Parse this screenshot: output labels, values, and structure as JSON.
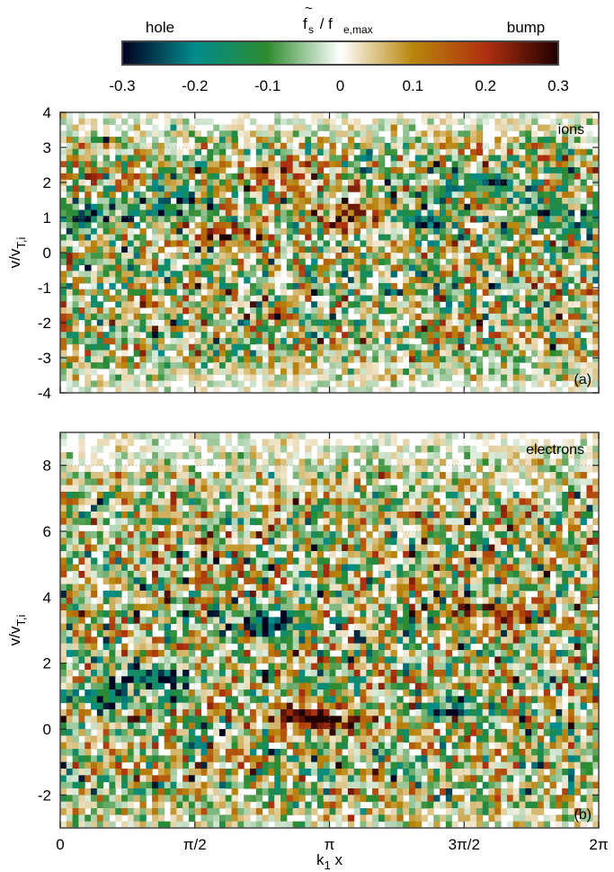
{
  "colorbar": {
    "title_main": "f",
    "title_tilde": "~",
    "title_sub": "s",
    "title_rest": " / f",
    "title_sub2": "e,max",
    "left_label": "hole",
    "right_label": "bump",
    "ticks": [
      "-0.3",
      "-0.2",
      "-0.1",
      "0",
      "0.1",
      "0.2",
      "0.3"
    ],
    "min": -0.3,
    "max": 0.3,
    "stops": [
      {
        "v": -0.3,
        "c": "#000020"
      },
      {
        "v": -0.2,
        "c": "#008c8c"
      },
      {
        "v": -0.1,
        "c": "#2e8b2e"
      },
      {
        "v": 0.0,
        "c": "#ffffff"
      },
      {
        "v": 0.1,
        "c": "#b8860b"
      },
      {
        "v": 0.2,
        "c": "#b03010"
      },
      {
        "v": 0.3,
        "c": "#200000"
      }
    ]
  },
  "chart_data": [
    {
      "type": "heatmap",
      "panel_label": "(a)",
      "species_label": "ions",
      "ylabel_main": "v/v",
      "ylabel_sub": "T,i",
      "xlim": [
        0,
        6.2832
      ],
      "ylim": [
        -4,
        4
      ],
      "yticks": [
        "4",
        "3",
        "2",
        "1",
        "0",
        "-1",
        "-2",
        "-3",
        "-4"
      ],
      "ytick_values": [
        4,
        3,
        2,
        1,
        0,
        -1,
        -2,
        -3,
        -4
      ],
      "xticks": [
        "0",
        "π/2",
        "π",
        "3π/2",
        "2π"
      ],
      "xtick_values": [
        0,
        1.5708,
        3.1416,
        4.7124,
        6.2832
      ],
      "grid": true,
      "features": [
        {
          "x": 1.3,
          "y": 1.3,
          "value": -0.28
        },
        {
          "x": 2.5,
          "y": 2.2,
          "value": 0.15
        },
        {
          "x": 4.9,
          "y": 2.0,
          "value": -0.2
        },
        {
          "x": 4.2,
          "y": 0.9,
          "value": -0.27
        },
        {
          "x": 0.2,
          "y": 1.0,
          "value": -0.26
        },
        {
          "x": 6.0,
          "y": 1.0,
          "value": -0.25
        },
        {
          "x": 3.5,
          "y": 1.0,
          "value": 0.25
        },
        {
          "x": 2.0,
          "y": 0.5,
          "value": 0.22
        }
      ]
    },
    {
      "type": "heatmap",
      "panel_label": "(b)",
      "species_label": "electrons",
      "xlabel_main": "k",
      "xlabel_sub": "1",
      "xlabel_rest": " x",
      "ylabel_main": "v/v",
      "ylabel_sub": "T,i",
      "xlim": [
        0,
        6.2832
      ],
      "ylim": [
        -3,
        9
      ],
      "yticks": [
        "8",
        "6",
        "4",
        "2",
        "0",
        "-2"
      ],
      "ytick_values": [
        8,
        6,
        4,
        2,
        0,
        -2
      ],
      "xticks": [
        "0",
        "π/2",
        "π",
        "3π/2",
        "2π"
      ],
      "xtick_values": [
        0,
        1.5708,
        3.1416,
        4.7124,
        6.2832
      ],
      "grid": true,
      "features": [
        {
          "x": 2.4,
          "y": 3.2,
          "value": -0.3
        },
        {
          "x": 1.1,
          "y": 1.5,
          "value": -0.27
        },
        {
          "x": 4.6,
          "y": 0.6,
          "value": -0.25
        },
        {
          "x": 3.1,
          "y": 0.2,
          "value": 0.22
        },
        {
          "x": 2.7,
          "y": 0.5,
          "value": 0.2
        },
        {
          "x": 5.2,
          "y": 3.5,
          "value": 0.2
        },
        {
          "x": 0.5,
          "y": 1.0,
          "value": -0.2
        }
      ]
    }
  ]
}
